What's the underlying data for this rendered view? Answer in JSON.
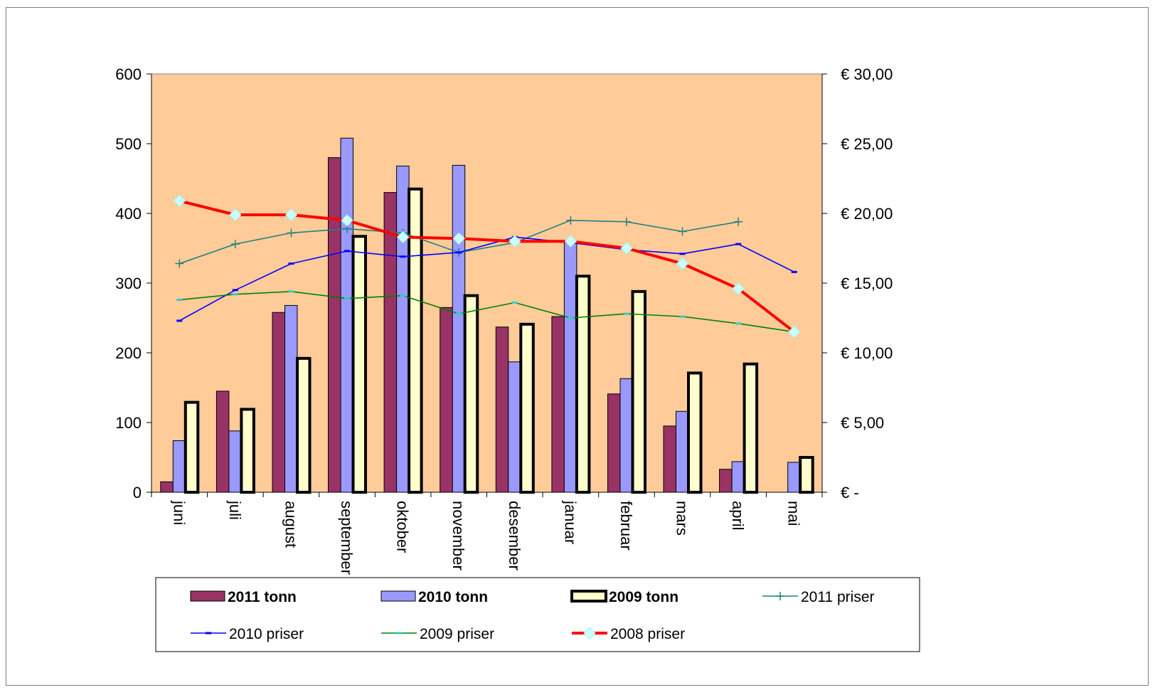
{
  "chart_data": {
    "type": "bar",
    "categories": [
      "juni",
      "juli",
      "august",
      "september",
      "oktober",
      "november",
      "desember",
      "januar",
      "februar",
      "mars",
      "april",
      "mai"
    ],
    "bar_series": [
      {
        "name": "2011 tonn",
        "color": "#993366",
        "values": [
          15,
          145,
          258,
          480,
          430,
          265,
          237,
          252,
          141,
          95,
          33,
          null
        ]
      },
      {
        "name": "2010 tonn",
        "color": "#9999ff",
        "values": [
          74,
          88,
          268,
          508,
          468,
          469,
          187,
          360,
          163,
          116,
          44,
          43
        ]
      },
      {
        "name": "2009 tonn",
        "color": "#ffffcc",
        "values": [
          129,
          119,
          192,
          367,
          435,
          282,
          241,
          310,
          288,
          171,
          184,
          50
        ]
      }
    ],
    "line_series": [
      {
        "name": "2011 priser",
        "color": "#208080",
        "marker": "plus",
        "values": [
          16.4,
          17.8,
          18.6,
          18.9,
          18.6,
          17.2,
          17.9,
          19.5,
          19.4,
          18.7,
          19.4,
          null
        ]
      },
      {
        "name": "2010 priser",
        "color": "#0000ff",
        "marker": "dash",
        "values": [
          12.3,
          14.5,
          16.4,
          17.3,
          16.9,
          17.2,
          18.3,
          17.9,
          17.4,
          17.1,
          17.8,
          15.8
        ]
      },
      {
        "name": "2009 priser",
        "color": "#008000",
        "marker": "dash",
        "values": [
          13.8,
          14.2,
          14.4,
          13.9,
          14.1,
          12.8,
          13.6,
          12.5,
          12.8,
          12.6,
          12.1,
          11.5
        ]
      },
      {
        "name": "2008 priser",
        "color": "#ff0000",
        "marker": "diamond",
        "values": [
          20.9,
          19.9,
          19.9,
          19.5,
          18.3,
          18.2,
          18.0,
          18.0,
          17.5,
          16.4,
          14.6,
          11.5
        ]
      }
    ],
    "y_left": {
      "min": 0,
      "max": 600,
      "step": 100,
      "tick_labels": [
        "0",
        "100",
        "200",
        "300",
        "400",
        "500",
        "600"
      ]
    },
    "y_right": {
      "min": 0,
      "max": 30,
      "step": 5,
      "tick_labels": [
        "€ -",
        "€ 5,00",
        "€ 10,00",
        "€ 15,00",
        "€ 20,00",
        "€ 25,00",
        "€ 30,00"
      ]
    },
    "plot_background": "#ffcc99",
    "grid": false,
    "legend": {
      "placement": "bottom",
      "entries": [
        "2011 tonn",
        "2010 tonn",
        "2009 tonn",
        "2011 priser",
        "2010 priser",
        "2009 priser",
        "2008 priser"
      ]
    }
  }
}
